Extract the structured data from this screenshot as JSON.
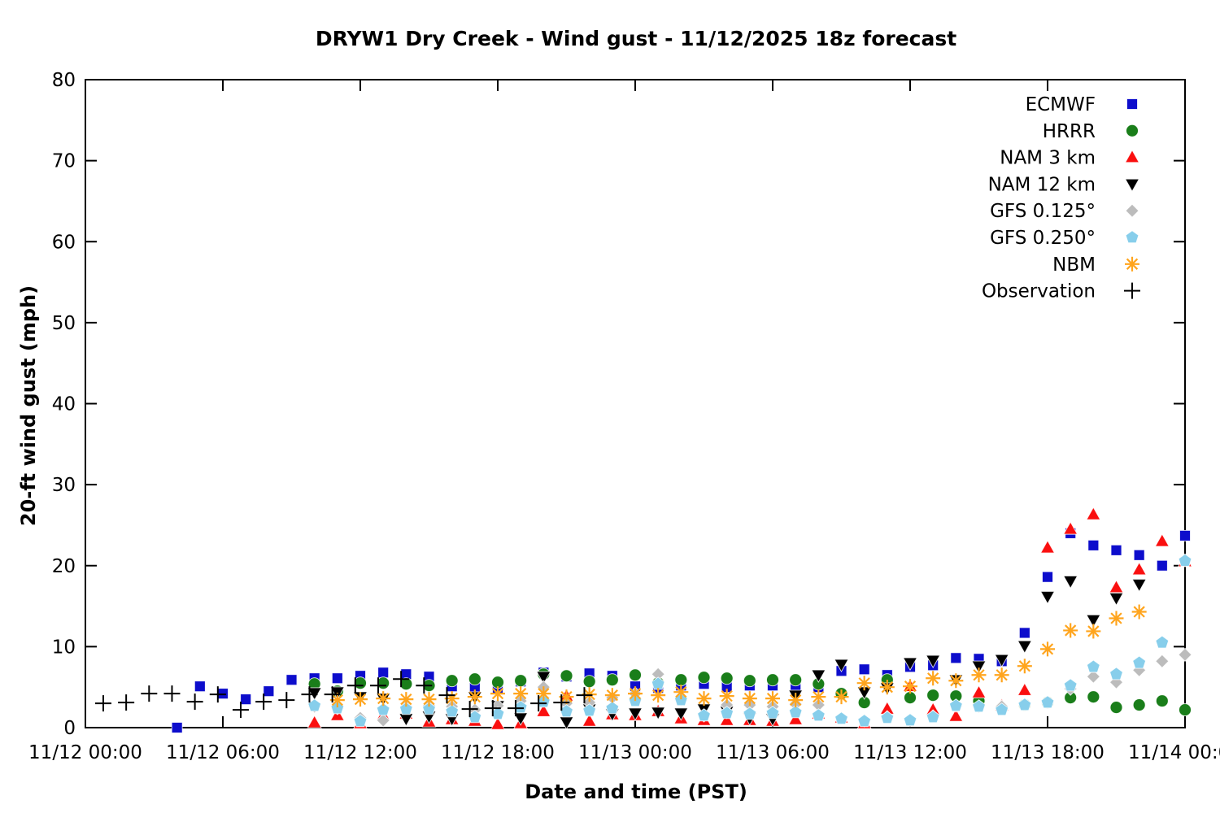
{
  "title": "DRYW1 Dry Creek - Wind gust - 11/12/2025 18z forecast",
  "chart_data": {
    "type": "scatter",
    "title": "DRYW1 Dry Creek - Wind gust - 11/12/2025 18z forecast",
    "xlabel": "Date and time (PST)",
    "ylabel": "20-ft wind gust (mph)",
    "grid": false,
    "legend_position": "top-right-inside",
    "x_axis": {
      "unit": "hours since 11/12 00:00 PST",
      "range": [
        0,
        48
      ],
      "tick_step_hours": 6,
      "tick_labels": [
        "11/12 00:00",
        "11/12 06:00",
        "11/12 12:00",
        "11/12 18:00",
        "11/13 00:00",
        "11/13 06:00",
        "11/13 12:00",
        "11/13 18:00",
        "11/14 00:00"
      ]
    },
    "y_axis": {
      "range": [
        0,
        80
      ],
      "ticks": [
        0,
        10,
        20,
        30,
        40,
        50,
        60,
        70,
        80
      ]
    },
    "series": [
      {
        "name": "ECMWF",
        "marker": "square",
        "color": "#0d0dcc",
        "points": [
          [
            4,
            0
          ],
          [
            5,
            5.1
          ],
          [
            6,
            4.2
          ],
          [
            7,
            3.5
          ],
          [
            8,
            4.5
          ],
          [
            9,
            5.9
          ],
          [
            10,
            6.1
          ],
          [
            11,
            6.1
          ],
          [
            12,
            6.4
          ],
          [
            13,
            6.8
          ],
          [
            14,
            6.6
          ],
          [
            15,
            6.3
          ],
          [
            16,
            5.1
          ],
          [
            17,
            5.0
          ],
          [
            18,
            4.8
          ],
          [
            19,
            5.7
          ],
          [
            20,
            6.8
          ],
          [
            21,
            6.3
          ],
          [
            22,
            6.7
          ],
          [
            23,
            6.4
          ],
          [
            24,
            5.1
          ],
          [
            25,
            4.9
          ],
          [
            26,
            5.2
          ],
          [
            27,
            5.4
          ],
          [
            28,
            5.0
          ],
          [
            29,
            5.2
          ],
          [
            30,
            5.2
          ],
          [
            31,
            5.2
          ],
          [
            32,
            5.0
          ],
          [
            33,
            7.0
          ],
          [
            34,
            7.2
          ],
          [
            35,
            6.5
          ],
          [
            36,
            7.5
          ],
          [
            37,
            7.7
          ],
          [
            38,
            8.6
          ],
          [
            39,
            8.5
          ],
          [
            40,
            8.2
          ],
          [
            41,
            11.7
          ],
          [
            42,
            18.6
          ],
          [
            43,
            24.0
          ],
          [
            44,
            22.5
          ],
          [
            45,
            21.9
          ],
          [
            46,
            21.3
          ],
          [
            47,
            20.0
          ],
          [
            48,
            23.7
          ]
        ]
      },
      {
        "name": "HRRR",
        "marker": "circle",
        "color": "#1a7e1a",
        "points": [
          [
            10,
            5.4
          ],
          [
            11,
            4.5
          ],
          [
            12,
            5.5
          ],
          [
            13,
            5.5
          ],
          [
            14,
            5.4
          ],
          [
            15,
            5.2
          ],
          [
            16,
            5.8
          ],
          [
            17,
            6.0
          ],
          [
            18,
            5.6
          ],
          [
            19,
            5.8
          ],
          [
            20,
            6.6
          ],
          [
            21,
            6.4
          ],
          [
            22,
            5.7
          ],
          [
            23,
            5.9
          ],
          [
            24,
            6.5
          ],
          [
            25,
            5.5
          ],
          [
            26,
            5.9
          ],
          [
            27,
            6.2
          ],
          [
            28,
            6.1
          ],
          [
            29,
            5.8
          ],
          [
            30,
            5.9
          ],
          [
            31,
            5.9
          ],
          [
            32,
            5.4
          ],
          [
            33,
            4.2
          ],
          [
            34,
            3.1
          ],
          [
            35,
            5.9
          ],
          [
            36,
            3.7
          ],
          [
            37,
            4.0
          ],
          [
            38,
            3.9
          ],
          [
            39,
            3.3
          ],
          [
            40,
            2.4
          ],
          [
            41,
            2.8
          ],
          [
            42,
            3.1
          ],
          [
            43,
            3.7
          ],
          [
            44,
            3.8
          ],
          [
            45,
            2.5
          ],
          [
            46,
            2.8
          ],
          [
            47,
            3.3
          ],
          [
            48,
            2.2
          ]
        ]
      },
      {
        "name": "NAM 3 km",
        "marker": "triangle-up",
        "color": "#fa0f0f",
        "points": [
          [
            10,
            0.6
          ],
          [
            11,
            1.5
          ],
          [
            12,
            0.5
          ],
          [
            13,
            1.5
          ],
          [
            14,
            1.7
          ],
          [
            15,
            0.7
          ],
          [
            16,
            1.0
          ],
          [
            17,
            0.8
          ],
          [
            18,
            0.4
          ],
          [
            19,
            0.5
          ],
          [
            20,
            2.0
          ],
          [
            21,
            3.9
          ],
          [
            22,
            0.8
          ],
          [
            23,
            1.6
          ],
          [
            24,
            1.5
          ],
          [
            25,
            2.0
          ],
          [
            26,
            1.1
          ],
          [
            27,
            0.9
          ],
          [
            28,
            0.9
          ],
          [
            29,
            0.9
          ],
          [
            30,
            0.8
          ],
          [
            31,
            1.0
          ],
          [
            32,
            1.7
          ],
          [
            33,
            1.2
          ],
          [
            34,
            0.5
          ],
          [
            35,
            2.3
          ],
          [
            36,
            5.1
          ],
          [
            37,
            2.2
          ],
          [
            38,
            1.4
          ],
          [
            39,
            4.3
          ],
          [
            40,
            2.7
          ],
          [
            41,
            4.6
          ],
          [
            42,
            22.2
          ],
          [
            43,
            24.5
          ],
          [
            44,
            26.3
          ],
          [
            45,
            17.3
          ],
          [
            46,
            19.5
          ],
          [
            47,
            23.0
          ],
          [
            48,
            20.5
          ]
        ]
      },
      {
        "name": "NAM 12 km",
        "marker": "triangle-down",
        "color": "#000000",
        "points": [
          [
            10,
            4.3
          ],
          [
            11,
            4.4
          ],
          [
            12,
            3.8
          ],
          [
            13,
            3.6
          ],
          [
            14,
            1.1
          ],
          [
            15,
            1.4
          ],
          [
            16,
            1.1
          ],
          [
            17,
            3.8
          ],
          [
            18,
            2.7
          ],
          [
            19,
            1.2
          ],
          [
            20,
            6.3
          ],
          [
            21,
            0.7
          ],
          [
            22,
            2.3
          ],
          [
            23,
            1.7
          ],
          [
            24,
            1.8
          ],
          [
            25,
            1.9
          ],
          [
            26,
            1.8
          ],
          [
            27,
            2.3
          ],
          [
            28,
            2.0
          ],
          [
            29,
            1.2
          ],
          [
            30,
            1.1
          ],
          [
            31,
            4.0
          ],
          [
            32,
            6.5
          ],
          [
            33,
            7.8
          ],
          [
            34,
            4.4
          ],
          [
            35,
            4.9
          ],
          [
            36,
            8.0
          ],
          [
            37,
            8.3
          ],
          [
            38,
            5.9
          ],
          [
            39,
            7.6
          ],
          [
            40,
            8.4
          ],
          [
            41,
            10.1
          ],
          [
            42,
            16.2
          ],
          [
            43,
            18.1
          ],
          [
            44,
            13.3
          ],
          [
            45,
            16.0
          ],
          [
            46,
            17.7
          ]
        ]
      },
      {
        "name": "GFS 0.125°",
        "marker": "diamond",
        "color": "#bcbcbc",
        "points": [
          [
            10,
            2.6
          ],
          [
            11,
            2.4
          ],
          [
            12,
            1.2
          ],
          [
            13,
            0.9
          ],
          [
            14,
            2.6
          ],
          [
            15,
            2.7
          ],
          [
            16,
            2.6
          ],
          [
            17,
            2.2
          ],
          [
            18,
            2.7
          ],
          [
            19,
            3.3
          ],
          [
            20,
            5.0
          ],
          [
            21,
            3.0
          ],
          [
            22,
            3.1
          ],
          [
            23,
            3.7
          ],
          [
            24,
            4.2
          ],
          [
            25,
            6.6
          ],
          [
            26,
            3.4
          ],
          [
            27,
            1.5
          ],
          [
            28,
            2.8
          ],
          [
            29,
            2.8
          ],
          [
            30,
            2.6
          ],
          [
            31,
            2.9
          ],
          [
            32,
            2.8
          ],
          [
            33,
            1.2
          ],
          [
            34,
            0.9
          ],
          [
            35,
            1.3
          ],
          [
            36,
            0.9
          ],
          [
            37,
            1.4
          ],
          [
            38,
            2.7
          ],
          [
            39,
            2.6
          ],
          [
            40,
            2.6
          ],
          [
            41,
            2.9
          ],
          [
            42,
            3.1
          ],
          [
            43,
            4.8
          ],
          [
            44,
            6.3
          ],
          [
            45,
            5.6
          ],
          [
            46,
            7.1
          ],
          [
            47,
            8.2
          ],
          [
            48,
            9.0
          ]
        ]
      },
      {
        "name": "GFS 0.250°",
        "marker": "pentagon",
        "color": "#87ceeb",
        "points": [
          [
            10,
            2.7
          ],
          [
            11,
            2.4
          ],
          [
            12,
            0.8
          ],
          [
            13,
            2.2
          ],
          [
            14,
            2.3
          ],
          [
            15,
            2.3
          ],
          [
            16,
            2.0
          ],
          [
            17,
            1.3
          ],
          [
            18,
            1.7
          ],
          [
            19,
            2.5
          ],
          [
            20,
            3.2
          ],
          [
            21,
            2.0
          ],
          [
            22,
            2.1
          ],
          [
            23,
            2.4
          ],
          [
            24,
            3.3
          ],
          [
            25,
            5.4
          ],
          [
            26,
            3.4
          ],
          [
            27,
            1.5
          ],
          [
            28,
            1.8
          ],
          [
            29,
            1.7
          ],
          [
            30,
            1.8
          ],
          [
            31,
            1.9
          ],
          [
            32,
            1.5
          ],
          [
            33,
            1.1
          ],
          [
            34,
            0.8
          ],
          [
            35,
            1.2
          ],
          [
            36,
            0.9
          ],
          [
            37,
            1.3
          ],
          [
            38,
            2.7
          ],
          [
            39,
            2.6
          ],
          [
            40,
            2.2
          ],
          [
            41,
            2.8
          ],
          [
            42,
            3.1
          ],
          [
            43,
            5.2
          ],
          [
            44,
            7.5
          ],
          [
            45,
            6.6
          ],
          [
            46,
            8.0
          ],
          [
            47,
            10.5
          ],
          [
            48,
            20.6
          ]
        ]
      },
      {
        "name": "NBM",
        "marker": "asterisk",
        "color": "#ffa51e",
        "points": [
          [
            11,
            3.4
          ],
          [
            12,
            3.5
          ],
          [
            13,
            3.6
          ],
          [
            14,
            3.5
          ],
          [
            15,
            3.5
          ],
          [
            16,
            3.6
          ],
          [
            17,
            3.8
          ],
          [
            18,
            4.2
          ],
          [
            19,
            4.2
          ],
          [
            20,
            4.2
          ],
          [
            21,
            3.8
          ],
          [
            22,
            4.1
          ],
          [
            23,
            4.0
          ],
          [
            24,
            4.2
          ],
          [
            25,
            4.0
          ],
          [
            26,
            4.4
          ],
          [
            27,
            3.6
          ],
          [
            28,
            3.9
          ],
          [
            29,
            3.6
          ],
          [
            30,
            3.6
          ],
          [
            31,
            3.4
          ],
          [
            32,
            3.8
          ],
          [
            33,
            3.8
          ],
          [
            34,
            5.5
          ],
          [
            35,
            5.0
          ],
          [
            36,
            5.1
          ],
          [
            37,
            6.1
          ],
          [
            38,
            5.8
          ],
          [
            39,
            6.5
          ],
          [
            40,
            6.5
          ],
          [
            41,
            7.6
          ],
          [
            42,
            9.7
          ],
          [
            43,
            12.0
          ],
          [
            44,
            11.9
          ],
          [
            45,
            13.5
          ],
          [
            46,
            14.3
          ]
        ]
      },
      {
        "name": "Observation",
        "marker": "plus",
        "color": "#000000",
        "points": [
          [
            0.78,
            3.0
          ],
          [
            1.78,
            3.1
          ],
          [
            2.78,
            4.2
          ],
          [
            3.78,
            4.2
          ],
          [
            4.78,
            3.2
          ],
          [
            5.78,
            4.1
          ],
          [
            6.78,
            2.2
          ],
          [
            7.78,
            3.2
          ],
          [
            8.78,
            3.4
          ],
          [
            9.78,
            4.1
          ],
          [
            10.78,
            4.1
          ],
          [
            11.78,
            5.2
          ],
          [
            12.78,
            5.2
          ],
          [
            13.78,
            6.0
          ],
          [
            14.78,
            5.2
          ],
          [
            15.78,
            4.0
          ],
          [
            16.78,
            2.3
          ],
          [
            17.78,
            2.4
          ],
          [
            18.78,
            2.4
          ],
          [
            19.78,
            3.0
          ],
          [
            20.78,
            3.1
          ],
          [
            21.78,
            4.0
          ]
        ]
      }
    ]
  }
}
